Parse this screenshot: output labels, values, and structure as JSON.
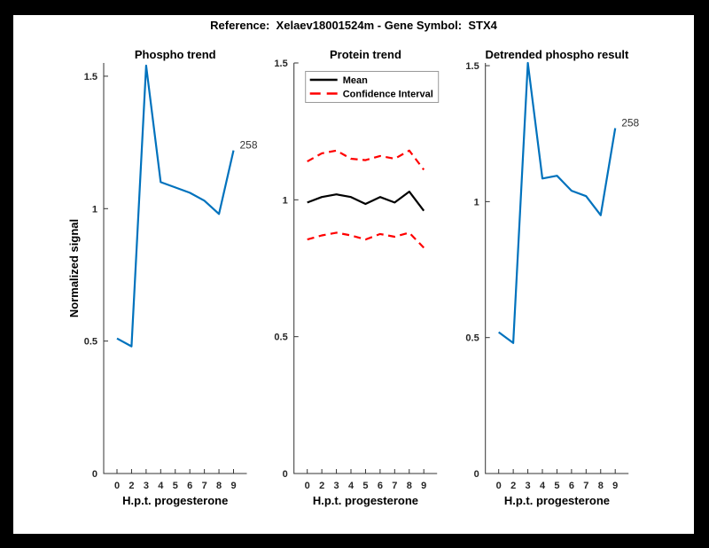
{
  "window": {
    "background_color": "#000000",
    "figure_background_color": "#ffffff"
  },
  "header": {
    "title": "Reference:  Xelaev18001524m - Gene Symbol:  STX4"
  },
  "colors": {
    "matlab_blue": "#0072BD",
    "ci_red": "#FF0000",
    "mean_black": "#000000",
    "axis_gray": "#333333",
    "tick_label_gray": "#262626",
    "annotation_gray": "#333333"
  },
  "chart_data": [
    {
      "type": "line",
      "title": "Phospho trend",
      "xlabel": "H.p.t. progesterone",
      "ylabel": "Normalized signal",
      "show_ylabel": true,
      "categories": [
        "0",
        "2",
        "3",
        "4",
        "5",
        "6",
        "7",
        "8",
        "9"
      ],
      "ylim": [
        0,
        1.55
      ],
      "y_ticks": {
        "values": [
          0,
          0.5,
          1,
          1.5
        ],
        "labels": [
          "0",
          "0.5",
          "1",
          "1.5"
        ]
      },
      "grid": false,
      "series": [
        {
          "name": "phospho-signal",
          "color": "#0072BD",
          "style": "solid",
          "values": [
            0.51,
            0.48,
            1.54,
            1.1,
            1.08,
            1.06,
            1.03,
            0.98,
            1.22
          ],
          "end_label": "258"
        }
      ]
    },
    {
      "type": "line",
      "title": "Protein trend",
      "xlabel": "H.p.t. progesterone",
      "ylabel": "Normalized signal",
      "show_ylabel": false,
      "categories": [
        "0",
        "2",
        "3",
        "4",
        "5",
        "6",
        "7",
        "8",
        "9"
      ],
      "ylim": [
        0,
        1.5
      ],
      "y_ticks": {
        "values": [
          0,
          0.5,
          1,
          1.5
        ],
        "labels": [
          "0",
          "0.5",
          "1",
          "1.5"
        ]
      },
      "grid": false,
      "legend": {
        "position": "upper-left",
        "entries": [
          {
            "label": "Mean",
            "color": "#000000",
            "style": "solid"
          },
          {
            "label": "Confidence Interval",
            "color": "#FF0000",
            "style": "dashed"
          }
        ]
      },
      "series": [
        {
          "name": "confidence-interval-upper",
          "color": "#FF0000",
          "style": "dashed",
          "values": [
            1.14,
            1.17,
            1.18,
            1.15,
            1.145,
            1.16,
            1.15,
            1.18,
            1.11
          ]
        },
        {
          "name": "confidence-interval-lower",
          "color": "#FF0000",
          "style": "dashed",
          "values": [
            0.855,
            0.87,
            0.88,
            0.87,
            0.855,
            0.875,
            0.865,
            0.88,
            0.825
          ]
        },
        {
          "name": "mean",
          "color": "#000000",
          "style": "solid",
          "values": [
            0.99,
            1.01,
            1.02,
            1.01,
            0.985,
            1.01,
            0.99,
            1.03,
            0.96
          ]
        }
      ]
    },
    {
      "type": "line",
      "title": "Detrended phospho result",
      "xlabel": "H.p.t. progesterone",
      "ylabel": "Normalized signal",
      "show_ylabel": false,
      "categories": [
        "0",
        "2",
        "3",
        "4",
        "5",
        "6",
        "7",
        "8",
        "9"
      ],
      "ylim": [
        0,
        1.51
      ],
      "y_ticks": {
        "values": [
          0,
          0.5,
          1,
          1.5
        ],
        "labels": [
          "0",
          "0.5",
          "1",
          "1.5"
        ]
      },
      "grid": false,
      "series": [
        {
          "name": "detrended-phospho-signal",
          "color": "#0072BD",
          "style": "solid",
          "values": [
            0.52,
            0.48,
            1.51,
            1.085,
            1.095,
            1.04,
            1.02,
            0.95,
            1.27
          ],
          "end_label": "258"
        }
      ]
    }
  ]
}
